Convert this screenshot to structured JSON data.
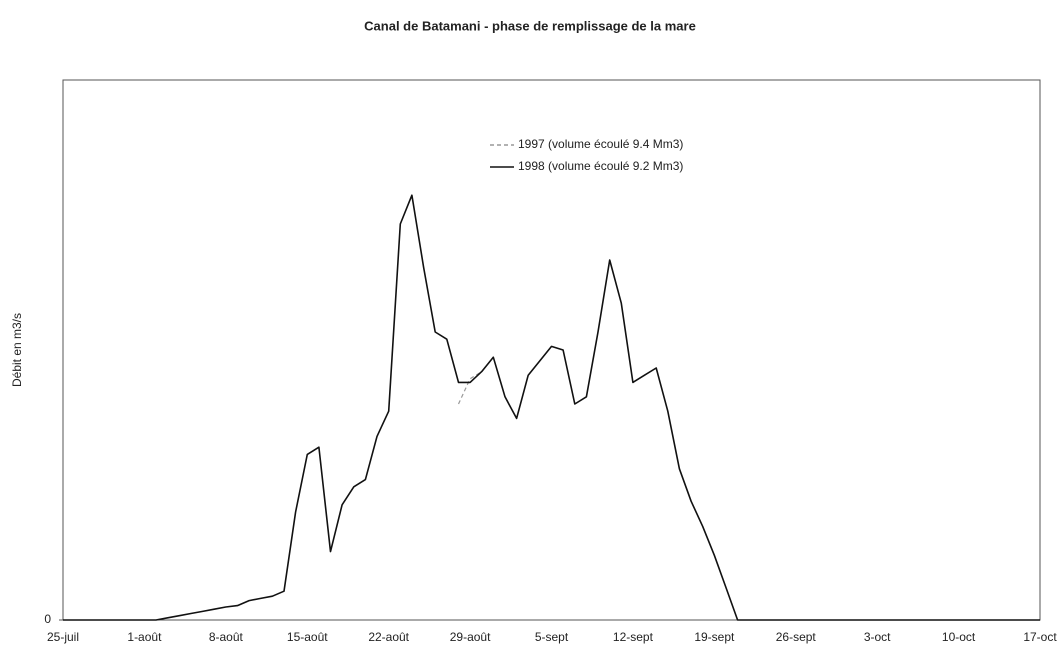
{
  "chart_data": {
    "type": "line",
    "title": "Canal de Batamani - phase de remplissage de la mare",
    "y_label": "Débit en m3/s",
    "categories": [
      "25-juil",
      null,
      null,
      null,
      null,
      null,
      null,
      "1-août",
      null,
      null,
      null,
      null,
      null,
      null,
      "8-août",
      null,
      null,
      null,
      null,
      null,
      null,
      "15-août",
      null,
      null,
      null,
      null,
      null,
      null,
      "22-août",
      null,
      null,
      null,
      null,
      null,
      null,
      "29-août",
      null,
      null,
      null,
      null,
      null,
      null,
      "5-sept",
      null,
      null,
      null,
      null,
      null,
      null,
      "12-sept",
      null,
      null,
      null,
      null,
      null,
      null,
      "19-sept",
      null,
      null,
      null,
      null,
      null,
      null,
      "26-sept",
      null,
      null,
      null,
      null,
      null,
      null,
      "3-oct",
      null,
      null,
      null,
      null,
      null,
      null,
      "10-oct",
      null,
      null,
      null,
      null,
      null,
      null,
      "17-oct"
    ],
    "series": [
      {
        "name": "1997 (volume écoulé 9.4 Mm3)",
        "color": "#999999",
        "values": [
          null,
          null,
          null,
          null,
          null,
          null,
          null,
          null,
          null,
          null,
          null,
          null,
          null,
          null,
          null,
          null,
          null,
          null,
          null,
          null,
          null,
          null,
          null,
          null,
          null,
          null,
          null,
          null,
          null,
          null,
          null,
          null,
          null,
          null,
          3.0,
          3.35,
          3.45,
          null,
          null,
          null,
          null,
          null,
          null,
          null,
          null,
          null,
          null,
          null,
          null,
          null,
          null,
          null,
          null,
          null,
          null,
          null,
          null,
          null,
          null,
          null,
          null,
          null,
          null,
          null,
          null,
          null,
          null,
          null,
          null,
          null,
          null,
          null,
          null,
          null,
          null,
          null,
          null,
          null,
          null,
          null,
          null,
          null,
          null,
          null,
          null
        ]
      },
      {
        "name": "1998 (volume écoulé 9.2 Mm3)",
        "color": "#111111",
        "values": [
          0,
          0,
          0,
          0,
          0,
          0,
          0,
          0,
          0,
          0.03,
          0.06,
          0.09,
          0.12,
          0.15,
          0.18,
          0.2,
          0.27,
          0.3,
          0.33,
          0.4,
          1.5,
          2.3,
          2.4,
          0.95,
          1.6,
          1.85,
          1.95,
          2.55,
          2.9,
          5.5,
          5.9,
          4.9,
          4.0,
          3.9,
          3.3,
          3.3,
          3.45,
          3.65,
          3.1,
          2.8,
          3.4,
          3.6,
          3.8,
          3.75,
          3.0,
          3.1,
          4.0,
          5.0,
          4.4,
          3.3,
          3.4,
          3.5,
          2.9,
          2.1,
          1.65,
          1.3,
          0.9,
          0.45,
          0,
          0,
          0,
          0,
          0,
          0,
          0,
          0,
          0,
          0,
          0,
          0,
          0,
          0,
          0,
          0,
          0,
          0,
          0,
          0,
          0,
          0,
          0,
          0,
          0,
          0,
          0
        ]
      }
    ],
    "ylim": [
      0,
      7.5
    ],
    "yticks": [
      0
    ]
  }
}
